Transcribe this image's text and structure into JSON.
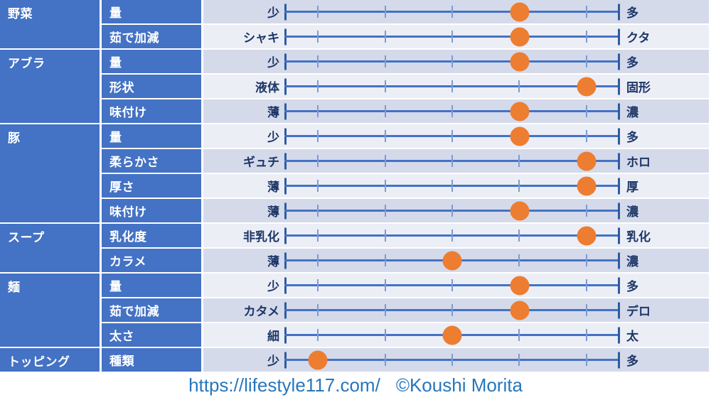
{
  "colors": {
    "header_blue": "#4472C4",
    "row_odd_bg": "#D4DAEA",
    "row_even_bg": "#ECEEF6",
    "track_line": "#4472C4",
    "tick_minor": "#7D9BD4",
    "end_bar": "#2E5B9F",
    "dot_orange": "#ED7D31",
    "label_navy": "#1C3667",
    "footer_text": "#2776BD"
  },
  "footer": {
    "url": "https://lifestyle117.com/",
    "credit": "©Koushi Morita"
  },
  "chart_data": {
    "type": "table",
    "title": "",
    "scale": {
      "min": 1,
      "max": 5,
      "tick_count": 5
    },
    "legend_position": "none",
    "grid": false,
    "groups": [
      {
        "category": "野菜",
        "rows": [
          {
            "attr": "量",
            "min": "少",
            "max": "多",
            "value": 4
          },
          {
            "attr": "茹で加減",
            "min": "シャキ",
            "max": "クタ",
            "value": 4
          }
        ]
      },
      {
        "category": "アブラ",
        "rows": [
          {
            "attr": "量",
            "min": "少",
            "max": "多",
            "value": 4
          },
          {
            "attr": "形状",
            "min": "液体",
            "max": "固形",
            "value": 5
          },
          {
            "attr": "味付け",
            "min": "薄",
            "max": "濃",
            "value": 4
          }
        ]
      },
      {
        "category": "豚",
        "rows": [
          {
            "attr": "量",
            "min": "少",
            "max": "多",
            "value": 4
          },
          {
            "attr": "柔らかさ",
            "min": "ギュチ",
            "max": "ホロ",
            "value": 5
          },
          {
            "attr": "厚さ",
            "min": "薄",
            "max": "厚",
            "value": 5
          },
          {
            "attr": "味付け",
            "min": "薄",
            "max": "濃",
            "value": 4
          }
        ]
      },
      {
        "category": "スープ",
        "rows": [
          {
            "attr": "乳化度",
            "min": "非乳化",
            "max": "乳化",
            "value": 5
          },
          {
            "attr": "カラメ",
            "min": "薄",
            "max": "濃",
            "value": 3
          }
        ]
      },
      {
        "category": "麺",
        "rows": [
          {
            "attr": "量",
            "min": "少",
            "max": "多",
            "value": 4
          },
          {
            "attr": "茹で加減",
            "min": "カタメ",
            "max": "デロ",
            "value": 4
          },
          {
            "attr": "太さ",
            "min": "細",
            "max": "太",
            "value": 3
          }
        ]
      },
      {
        "category": "トッピング",
        "rows": [
          {
            "attr": "種類",
            "min": "少",
            "max": "多",
            "value": 1
          }
        ]
      }
    ]
  }
}
